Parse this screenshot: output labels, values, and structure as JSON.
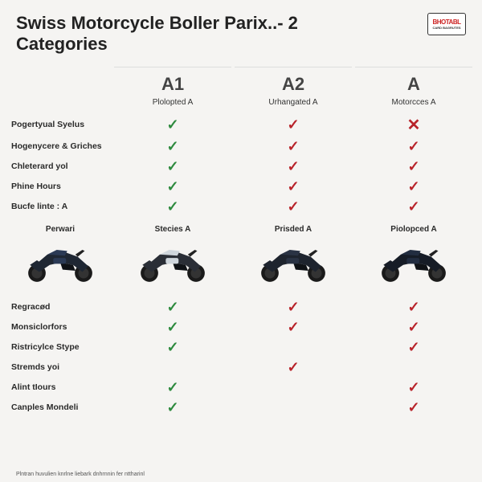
{
  "title_line1": "Swiss Motorcycle  Boller Parix..- 2",
  "title_line2": "Categories",
  "logo": {
    "top": "BHOTABL",
    "bottom": "CARD BAGRUTES"
  },
  "columns": {
    "c1": {
      "header": "A1",
      "sub": "Plolopted A"
    },
    "c2": {
      "header": "A2",
      "sub": "Urhangated A"
    },
    "c3": {
      "header": "A",
      "sub": "Motorcces A"
    }
  },
  "section1_rows": [
    {
      "label": "Pogertyual Syelus",
      "v": [
        "check-g",
        "check-r",
        "cross-r"
      ]
    },
    {
      "label": "Hogenycere & Griches",
      "v": [
        "check-g",
        "check-r",
        "check-r"
      ]
    },
    {
      "label": "Chleterard yol",
      "v": [
        "check-g",
        "check-r",
        "check-r"
      ]
    },
    {
      "label": "Phine Hours",
      "v": [
        "check-g",
        "check-r",
        "check-r"
      ]
    },
    {
      "label": "Bucfe linte : A",
      "v": [
        "check-g",
        "check-r",
        "check-r"
      ]
    }
  ],
  "bikes": {
    "b0": {
      "label": "Perwari",
      "body": "#1f2733",
      "accent": "#2b3a55"
    },
    "b1": {
      "label": "Stecies A",
      "body": "#2a2e36",
      "accent": "#cfd6dc"
    },
    "b2": {
      "label": "Prisded A",
      "body": "#1e242e",
      "accent": "#2a3344"
    },
    "b3": {
      "label": "Piolopced A",
      "body": "#161c26",
      "accent": "#222d40"
    }
  },
  "section2_rows": [
    {
      "label": "Regracød",
      "v": [
        "check-g",
        "check-r",
        "check-r"
      ]
    },
    {
      "label": "Monsiclorfors",
      "v": [
        "check-g",
        "check-r",
        "check-r"
      ]
    },
    {
      "label": "Ristricylce Stype",
      "v": [
        "check-g",
        "",
        "check-r"
      ]
    },
    {
      "label": "Stremds yoi",
      "v": [
        "",
        "check-r",
        ""
      ]
    },
    {
      "label": "Alint tIours",
      "v": [
        "check-g",
        "",
        "check-r"
      ]
    },
    {
      "label": "Canples Mondeli",
      "v": [
        "check-g",
        "",
        "check-r"
      ]
    }
  ],
  "footer": "Plntran huvulien knrlne liebark  dnhrnnin fer nttharinl",
  "glyphs": {
    "check": "✓",
    "cross": "✕"
  }
}
